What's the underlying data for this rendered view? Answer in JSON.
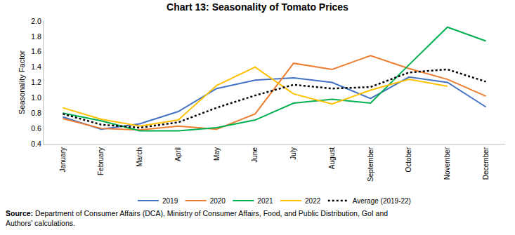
{
  "chart_data": {
    "type": "line",
    "title": "Chart 13: Seasonality of Tomato Prices",
    "y_label": "Seasonality Factor",
    "categories": [
      "January",
      "February",
      "March",
      "April",
      "May",
      "June",
      "July",
      "August",
      "September",
      "October",
      "November",
      "December"
    ],
    "series": [
      {
        "name": "2019",
        "color": "#4472c4",
        "values": [
          0.75,
          0.59,
          0.66,
          0.82,
          1.12,
          1.23,
          1.26,
          1.2,
          0.99,
          1.27,
          1.2,
          0.88
        ]
      },
      {
        "name": "2020",
        "color": "#ed7d31",
        "values": [
          0.73,
          0.6,
          0.58,
          0.63,
          0.59,
          0.79,
          1.45,
          1.37,
          1.55,
          1.38,
          1.24,
          1.02
        ]
      },
      {
        "name": "2021",
        "color": "#00b050",
        "values": [
          0.8,
          0.7,
          0.57,
          0.57,
          0.61,
          0.71,
          0.93,
          0.98,
          0.93,
          1.43,
          1.92,
          1.74
        ]
      },
      {
        "name": "2022",
        "color": "#ffc000",
        "values": [
          0.87,
          0.72,
          0.63,
          0.71,
          1.16,
          1.4,
          1.05,
          0.92,
          1.1,
          1.24,
          1.15,
          null
        ]
      },
      {
        "name": "Average (2019-22)",
        "color": "#000000",
        "line_style": "dot",
        "values": [
          0.79,
          0.65,
          0.61,
          0.68,
          0.87,
          1.03,
          1.17,
          1.12,
          1.14,
          1.33,
          1.37,
          1.21
        ]
      }
    ],
    "ylim": [
      0.4,
      2.0
    ],
    "yticks": [
      0.4,
      0.6,
      0.8,
      {
        "value": 1.0,
        "label": "1.0"
      },
      1.2,
      1.4,
      1.6,
      1.8,
      {
        "value": 2.0,
        "label": "2.0"
      }
    ],
    "grid": false,
    "legend": "bottom",
    "source": {
      "label": "Source:",
      "text": "Department of Consumer Affairs (DCA), Ministry of Consumer Affairs, Food, and Public Distribution, GoI and Authors' calculations."
    }
  }
}
